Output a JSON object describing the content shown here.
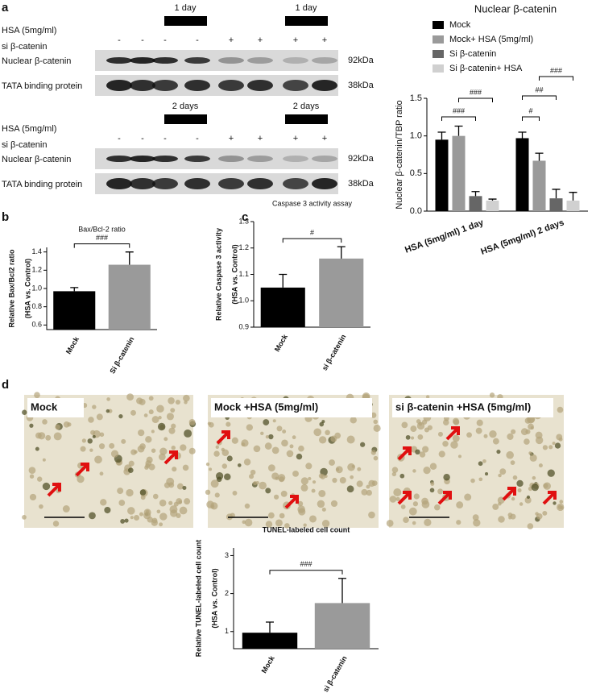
{
  "panels": [
    "a",
    "b",
    "c",
    "d"
  ],
  "blots": [
    {
      "durations": [
        "1 day",
        "1 day"
      ],
      "treatment": "HSA (5mg/ml)",
      "knockdown": "si β-catenin",
      "lane_signs": [
        "-",
        "-",
        "-",
        "-",
        "+",
        "+",
        "+",
        "+"
      ],
      "bands": [
        {
          "name": "Nuclear β-catenin",
          "size": "92kDa"
        },
        {
          "name": "TATA binding protein",
          "size": "38kDa"
        }
      ]
    },
    {
      "durations": [
        "2 days",
        "2 days"
      ],
      "treatment": "HSA (5mg/ml)",
      "knockdown": "si β-catenin",
      "lane_signs": [
        "-",
        "-",
        "-",
        "-",
        "+",
        "+",
        "+",
        "+"
      ],
      "bands": [
        {
          "name": "Nuclear β-catenin",
          "size": "92kDa"
        },
        {
          "name": "TATA binding protein",
          "size": "38kDa"
        }
      ]
    }
  ],
  "images": [
    "Mock",
    "Mock +HSA (5mg/ml)",
    "si β-catenin +HSA (5mg/ml)"
  ],
  "chart_data": [
    {
      "type": "grouped-bar",
      "title": "Nuclear β-catenin",
      "ylabel": [
        "Nuclear β-catenin/TBP ratio"
      ],
      "categories": [
        "HSA (5mg/ml) 1 day",
        "HSA (5mg/ml) 2 days"
      ],
      "series": [
        {
          "name": "Mock",
          "color": "#000000",
          "values": [
            0.95,
            0.97
          ],
          "errors": [
            0.1,
            0.08
          ]
        },
        {
          "name": "Mock+ HSA (5mg/ml)",
          "color": "#9a9a9a",
          "values": [
            1.0,
            0.67
          ],
          "errors": [
            0.13,
            0.1
          ]
        },
        {
          "name": "Si β-catenin",
          "color": "#666666",
          "values": [
            0.2,
            0.17
          ],
          "errors": [
            0.06,
            0.12
          ]
        },
        {
          "name": "Si β-catenin+ HSA",
          "color": "#d0d0d0",
          "values": [
            0.14,
            0.14
          ],
          "errors": [
            0.02,
            0.11
          ]
        }
      ],
      "ylim": [
        0,
        1.5
      ],
      "yticks": [
        {
          "value": 0,
          "label": "0.0"
        },
        0.5,
        {
          "value": 1,
          "label": "1.0"
        },
        1.5
      ],
      "annotations": [
        "###",
        "###",
        "#",
        "##",
        "###"
      ]
    },
    {
      "type": "bar",
      "title": "Bax/Bcl-2 ratio",
      "ylabel": [
        "Relative Bax/Bcl2 ratio",
        "(HSA vs. Control)"
      ],
      "categories": [
        "Mock",
        "Si β-catenin"
      ],
      "values": [
        0.97,
        1.26
      ],
      "errors": [
        0.04,
        0.14
      ],
      "colors": [
        "#000000",
        "#9a9a9a"
      ],
      "ylim": [
        0.55,
        1.45
      ],
      "yticks": [
        0.6,
        0.8,
        {
          "value": 1,
          "label": "1.0"
        },
        1.2,
        1.4
      ],
      "annotations": [
        "###"
      ]
    },
    {
      "type": "bar",
      "title": "Caspase 3 activity assay",
      "ylabel": [
        "Relative Caspase 3 activity",
        "(HSA vs. Control)"
      ],
      "categories": [
        "Mock",
        "si β-catenin"
      ],
      "values": [
        1.05,
        1.16
      ],
      "errors": [
        0.05,
        0.045
      ],
      "colors": [
        "#000000",
        "#9a9a9a"
      ],
      "ylim": [
        0.9,
        1.3
      ],
      "yticks": [
        0.9,
        {
          "value": 1,
          "label": "1.0"
        },
        1.1,
        1.2,
        1.3
      ],
      "annotations": [
        "#"
      ]
    },
    {
      "type": "bar",
      "title": "TUNEL-labeled cell count",
      "ylabel": [
        "Relative TUNEL-labeled cell count",
        "(HSA vs. Control)"
      ],
      "categories": [
        "Mock",
        "si β-catenin"
      ],
      "values": [
        0.97,
        1.75
      ],
      "errors": [
        0.28,
        0.65
      ],
      "colors": [
        "#000000",
        "#9a9a9a"
      ],
      "ylim": [
        0.55,
        3.2
      ],
      "yticks": [
        1,
        2,
        3
      ],
      "annotations": [
        "###"
      ]
    }
  ]
}
